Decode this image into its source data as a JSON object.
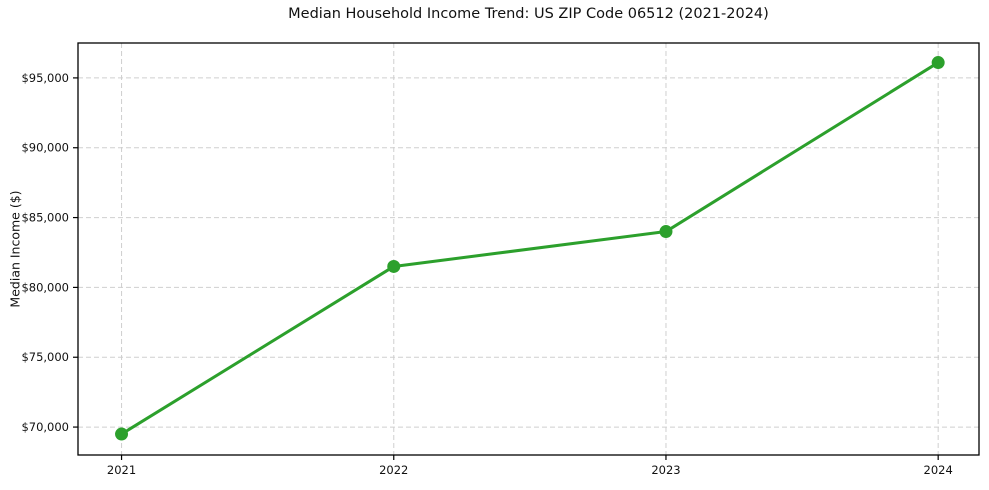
{
  "chart_data": {
    "type": "line",
    "title": "Median Household Income Trend: US ZIP Code 06512 (2021-2024)",
    "xlabel": "",
    "ylabel": "Median Income ($)",
    "x": [
      2021,
      2022,
      2023,
      2024
    ],
    "xtick_labels": [
      "2021",
      "2022",
      "2023",
      "2024"
    ],
    "series": [
      {
        "values": [
          69500,
          81500,
          84000,
          96100
        ],
        "color": "#2ca02c",
        "marker": "circle"
      }
    ],
    "yticks": [
      70000,
      75000,
      80000,
      85000,
      90000,
      95000
    ],
    "ytick_labels": [
      "$70,000",
      "$75,000",
      "$80,000",
      "$85,000",
      "$90,000",
      "$95,000"
    ],
    "ylim": [
      68000,
      97500
    ],
    "xlim": [
      2020.84,
      2024.15
    ],
    "grid": true,
    "grid_color": "#cfcfcf",
    "grid_style": "dashed",
    "legend": "none",
    "axis_color": "#000000",
    "text_color": "#111111",
    "background": "#ffffff"
  }
}
